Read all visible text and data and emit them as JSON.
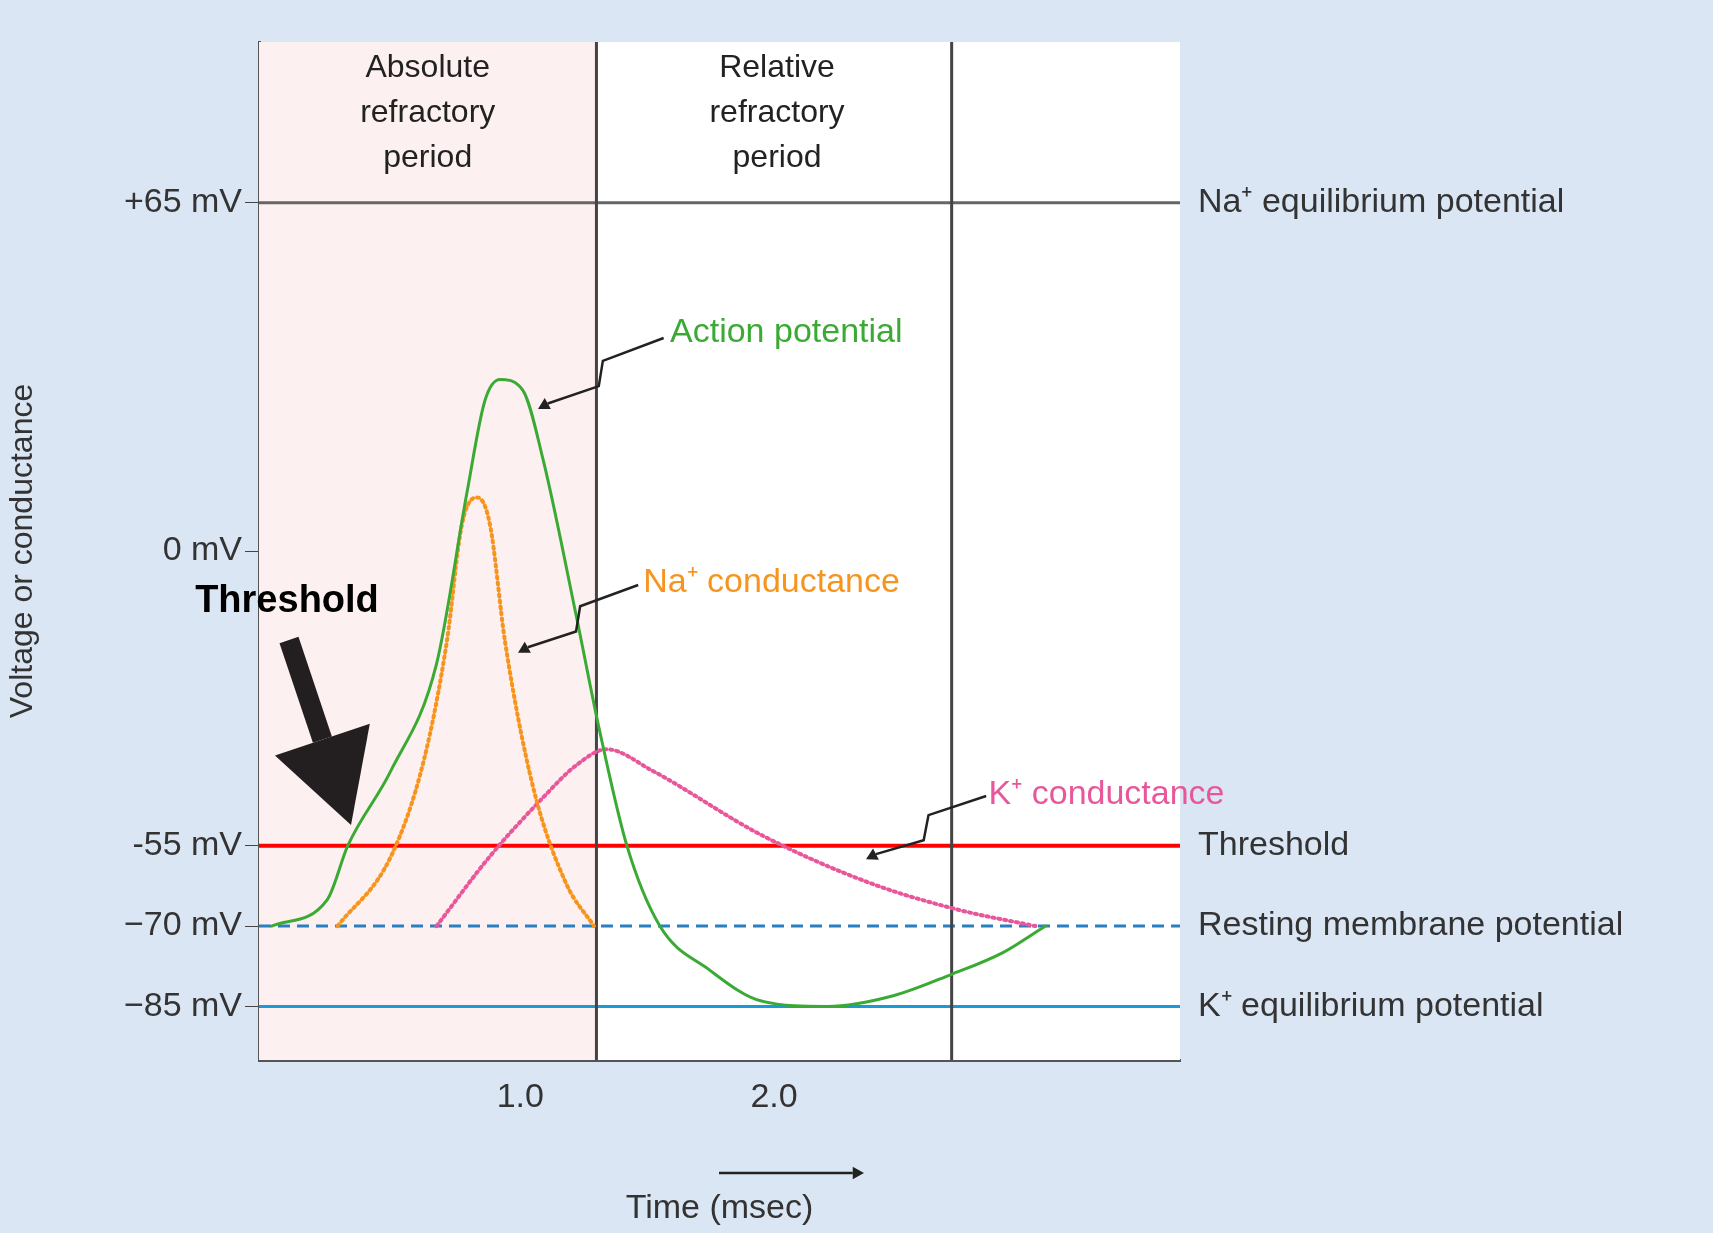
{
  "chart_data": {
    "type": "line",
    "xlabel": "Time (msec)",
    "ylabel": "Voltage or conductance",
    "xlim": [
      -0.03,
      3.6
    ],
    "xticks": [
      {
        "value": 1,
        "label": "1.0"
      },
      {
        "value": 2,
        "label": "2.0"
      }
    ],
    "ylim": [
      -95,
      95
    ],
    "yticks": [
      {
        "value": 65,
        "label": "+65 mV"
      },
      {
        "value": 0,
        "label": "0 mV"
      },
      {
        "value": -55,
        "label": "-55 mV"
      },
      {
        "value": -70,
        "label": "−70 mV"
      },
      {
        "value": -85,
        "label": "−85 mV"
      }
    ],
    "series": [
      {
        "name": "Action potential",
        "color": "#3aaa35",
        "line_style": "solid",
        "x": [
          0.02,
          0.24,
          0.32,
          0.49,
          0.67,
          0.79,
          0.86,
          0.92,
          1.01,
          1.09,
          1.22,
          1.31,
          1.42,
          1.55,
          1.74,
          1.95,
          2.21,
          2.47,
          2.7,
          2.9,
          3.07
        ],
        "values": [
          -70,
          -65,
          -55,
          -41,
          -21,
          11,
          28,
          32,
          30,
          17,
          -12,
          -33,
          -55,
          -70,
          -78,
          -84,
          -85,
          -83,
          -79,
          -75,
          -70
        ]
      },
      {
        "name": "Na⁺ conductance",
        "color": "#f7941d",
        "line_style": "dotted",
        "x": [
          0.28,
          0.49,
          0.62,
          0.71,
          0.77,
          0.83,
          0.88,
          0.94,
          1.05,
          1.18,
          1.29
        ],
        "values": [
          -70,
          -57,
          -39,
          -17,
          5,
          10,
          5,
          -17,
          -44,
          -62,
          -70
        ]
      },
      {
        "name": "K⁺ conductance",
        "color": "#e8579a",
        "line_style": "dotted",
        "x": [
          0.67,
          0.88,
          1.09,
          1.22,
          1.34,
          1.52,
          1.95,
          2.38,
          2.73,
          3.03
        ],
        "values": [
          -70,
          -57,
          -46,
          -40,
          -37,
          -41,
          -53,
          -62,
          -67,
          -70
        ]
      }
    ],
    "bands": [
      {
        "axis": "x",
        "from": -0.03,
        "to": 1.3,
        "label": "Absolute refractory period",
        "color": "#fdf0f0"
      }
    ],
    "ref_lines": [
      {
        "axis": "y",
        "value": 65,
        "label": "Na⁺ equilibrium potential",
        "color": "#666666"
      },
      {
        "axis": "y",
        "value": -55,
        "label": "Threshold",
        "color": "#ff0000"
      },
      {
        "axis": "y",
        "value": -70,
        "label": "Resting membrane potential",
        "color": "#2a7fc1",
        "line_style": "dashed"
      },
      {
        "axis": "y",
        "value": -85,
        "label": "K⁺ equilibrium potential",
        "color": "#1a9ad6"
      },
      {
        "axis": "x",
        "value": 1.3,
        "color": "#444444"
      },
      {
        "axis": "x",
        "value": 2.7,
        "color": "#444444"
      }
    ],
    "annotations": [
      "Threshold",
      "Relative refractory period"
    ],
    "legend": false,
    "grid": false,
    "marker": "none"
  }
}
